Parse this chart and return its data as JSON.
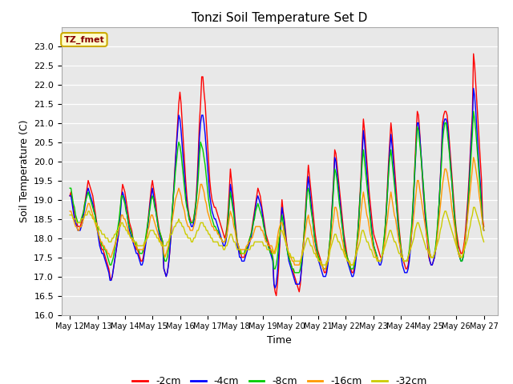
{
  "title": "Tonzi Soil Temperature Set D",
  "xlabel": "Time",
  "ylabel": "Soil Temperature (C)",
  "ylim": [
    16.0,
    23.5
  ],
  "yticks": [
    16.0,
    16.5,
    17.0,
    17.5,
    18.0,
    18.5,
    19.0,
    19.5,
    20.0,
    20.5,
    21.0,
    21.5,
    22.0,
    22.5,
    23.0
  ],
  "series_labels": [
    "-2cm",
    "-4cm",
    "-8cm",
    "-16cm",
    "-32cm"
  ],
  "series_colors": [
    "#ff0000",
    "#0000ff",
    "#00cc00",
    "#ff9900",
    "#cccc00"
  ],
  "annotation_text": "TZ_fmet",
  "annotation_bg": "#ffffcc",
  "annotation_border": "#ccaa00",
  "x_tick_labels": [
    "May 12",
    "May 13",
    "May 14",
    "May 15",
    "May 16",
    "May 17",
    "May 18",
    "May 19",
    "May 20",
    "May 21",
    "May 22",
    "May 23",
    "May 24",
    "May 25",
    "May 26",
    "May 27"
  ],
  "plot_bg": "#e8e8e8",
  "fig_bg": "#ffffff",
  "t2cm": [
    19.1,
    19.2,
    19.0,
    18.8,
    18.6,
    18.5,
    18.4,
    18.3,
    18.3,
    18.3,
    18.4,
    18.5,
    18.7,
    18.9,
    19.1,
    19.3,
    19.5,
    19.4,
    19.3,
    19.2,
    19.1,
    18.9,
    18.7,
    18.5,
    18.3,
    18.1,
    17.9,
    17.8,
    17.7,
    17.7,
    17.6,
    17.5,
    17.4,
    17.3,
    17.2,
    17.0,
    16.9,
    17.0,
    17.2,
    17.4,
    17.6,
    17.8,
    18.0,
    18.3,
    18.7,
    19.1,
    19.4,
    19.3,
    19.2,
    19.0,
    18.8,
    18.6,
    18.4,
    18.3,
    18.2,
    18.0,
    17.9,
    17.8,
    17.7,
    17.7,
    17.6,
    17.5,
    17.4,
    17.4,
    17.5,
    17.7,
    17.9,
    18.1,
    18.4,
    18.7,
    19.0,
    19.3,
    19.5,
    19.3,
    19.1,
    18.9,
    18.6,
    18.4,
    18.2,
    18.1,
    18.0,
    17.9,
    17.2,
    17.1,
    17.0,
    17.1,
    17.3,
    17.6,
    18.0,
    18.5,
    19.0,
    19.5,
    20.0,
    20.5,
    21.0,
    21.5,
    21.8,
    21.5,
    21.0,
    20.5,
    20.0,
    19.5,
    19.1,
    18.8,
    18.6,
    18.5,
    18.4,
    18.4,
    18.5,
    18.7,
    19.0,
    19.5,
    20.2,
    21.0,
    21.5,
    22.2,
    22.2,
    21.8,
    21.5,
    21.0,
    20.5,
    20.0,
    19.5,
    19.2,
    19.0,
    18.9,
    18.8,
    18.8,
    18.7,
    18.6,
    18.5,
    18.4,
    18.3,
    18.2,
    18.1,
    18.0,
    18.1,
    18.3,
    18.7,
    19.2,
    19.8,
    19.5,
    19.2,
    18.9,
    18.5,
    18.2,
    17.9,
    17.8,
    17.6,
    17.6,
    17.5,
    17.5,
    17.5,
    17.6,
    17.7,
    17.8,
    17.9,
    18.0,
    18.1,
    18.3,
    18.5,
    18.7,
    18.9,
    19.1,
    19.3,
    19.2,
    19.1,
    18.9,
    18.7,
    18.5,
    18.3,
    18.1,
    18.0,
    17.9,
    17.8,
    17.7,
    17.6,
    17.5,
    16.8,
    16.6,
    16.5,
    16.8,
    17.2,
    17.8,
    18.5,
    19.0,
    18.7,
    18.5,
    18.2,
    17.9,
    17.7,
    17.5,
    17.4,
    17.3,
    17.2,
    17.1,
    17.0,
    16.9,
    16.8,
    16.7,
    16.6,
    16.8,
    17.2,
    17.6,
    18.0,
    18.5,
    19.0,
    19.5,
    19.9,
    19.6,
    19.3,
    19.0,
    18.7,
    18.4,
    18.1,
    17.9,
    17.7,
    17.6,
    17.5,
    17.4,
    17.3,
    17.2,
    17.1,
    17.1,
    17.2,
    17.4,
    17.7,
    18.0,
    18.5,
    19.0,
    19.5,
    20.3,
    20.2,
    19.9,
    19.6,
    19.3,
    19.0,
    18.7,
    18.4,
    18.1,
    17.9,
    17.7,
    17.5,
    17.4,
    17.3,
    17.2,
    17.1,
    17.1,
    17.2,
    17.4,
    17.7,
    18.1,
    18.6,
    19.1,
    19.7,
    20.5,
    21.1,
    20.8,
    20.4,
    20.0,
    19.6,
    19.2,
    18.9,
    18.6,
    18.3,
    18.1,
    18.0,
    17.9,
    17.8,
    17.7,
    17.6,
    17.5,
    17.5,
    17.6,
    17.9,
    18.3,
    18.8,
    19.4,
    20.0,
    20.5,
    21.0,
    20.7,
    20.3,
    19.9,
    19.5,
    19.1,
    18.7,
    18.3,
    18.0,
    17.7,
    17.5,
    17.4,
    17.3,
    17.2,
    17.2,
    17.3,
    17.5,
    17.8,
    18.2,
    18.7,
    19.3,
    20.0,
    20.7,
    21.3,
    21.2,
    20.8,
    20.3,
    19.8,
    19.3,
    18.9,
    18.5,
    18.1,
    17.8,
    17.5,
    17.4,
    17.3,
    17.3,
    17.4,
    17.5,
    17.7,
    18.0,
    18.4,
    18.9,
    19.5,
    20.2,
    21.0,
    21.2,
    21.3,
    21.3,
    21.2,
    20.9,
    20.5,
    20.1,
    19.7,
    19.3,
    18.9,
    18.5,
    18.2,
    18.0,
    17.8,
    17.7,
    17.6,
    17.6,
    17.7,
    17.9,
    18.2,
    18.6,
    19.0,
    19.5,
    20.1,
    20.7,
    21.2,
    22.8,
    22.5,
    22.0,
    21.5,
    21.0,
    20.5,
    20.0,
    19.5,
    18.5,
    18.3
  ],
  "t4cm": [
    19.1,
    19.1,
    18.9,
    18.7,
    18.5,
    18.4,
    18.3,
    18.2,
    18.2,
    18.2,
    18.3,
    18.4,
    18.6,
    18.8,
    19.0,
    19.2,
    19.3,
    19.2,
    19.1,
    19.0,
    18.9,
    18.7,
    18.6,
    18.4,
    18.2,
    18.0,
    17.8,
    17.7,
    17.6,
    17.6,
    17.5,
    17.4,
    17.3,
    17.2,
    17.1,
    16.9,
    16.9,
    17.0,
    17.2,
    17.4,
    17.6,
    17.8,
    18.0,
    18.2,
    18.6,
    19.0,
    19.2,
    19.1,
    19.0,
    18.8,
    18.6,
    18.4,
    18.2,
    18.1,
    18.0,
    17.9,
    17.8,
    17.7,
    17.6,
    17.6,
    17.5,
    17.4,
    17.3,
    17.3,
    17.4,
    17.6,
    17.8,
    18.0,
    18.3,
    18.6,
    18.9,
    19.1,
    19.3,
    19.1,
    18.9,
    18.7,
    18.5,
    18.3,
    18.1,
    18.0,
    17.9,
    17.8,
    17.2,
    17.1,
    17.0,
    17.1,
    17.3,
    17.6,
    18.0,
    18.5,
    19.0,
    19.4,
    19.9,
    20.4,
    20.8,
    21.2,
    21.1,
    20.8,
    20.4,
    20.0,
    19.6,
    19.2,
    18.9,
    18.7,
    18.5,
    18.4,
    18.3,
    18.3,
    18.4,
    18.6,
    18.9,
    19.3,
    19.9,
    20.6,
    21.0,
    21.2,
    21.2,
    21.0,
    20.7,
    20.3,
    19.9,
    19.5,
    19.1,
    18.9,
    18.7,
    18.6,
    18.5,
    18.5,
    18.4,
    18.3,
    18.2,
    18.1,
    18.0,
    17.9,
    17.8,
    17.8,
    17.9,
    18.1,
    18.4,
    18.9,
    19.4,
    19.2,
    18.9,
    18.7,
    18.4,
    18.1,
    17.8,
    17.7,
    17.5,
    17.5,
    17.4,
    17.4,
    17.4,
    17.5,
    17.6,
    17.7,
    17.8,
    17.9,
    18.0,
    18.2,
    18.4,
    18.6,
    18.8,
    19.0,
    19.1,
    19.0,
    18.9,
    18.8,
    18.6,
    18.4,
    18.2,
    18.0,
    17.9,
    17.8,
    17.7,
    17.6,
    17.5,
    17.4,
    16.8,
    16.7,
    16.8,
    17.1,
    17.5,
    17.9,
    18.4,
    18.8,
    18.6,
    18.4,
    18.1,
    17.8,
    17.6,
    17.4,
    17.3,
    17.2,
    17.1,
    17.0,
    16.9,
    16.8,
    16.8,
    16.8,
    16.8,
    16.9,
    17.2,
    17.5,
    17.9,
    18.3,
    18.8,
    19.3,
    19.6,
    19.3,
    19.0,
    18.7,
    18.4,
    18.1,
    17.9,
    17.7,
    17.5,
    17.4,
    17.3,
    17.2,
    17.1,
    17.0,
    17.0,
    17.0,
    17.1,
    17.3,
    17.6,
    17.9,
    18.4,
    18.9,
    19.4,
    20.1,
    20.0,
    19.7,
    19.4,
    19.1,
    18.8,
    18.5,
    18.2,
    18.0,
    17.7,
    17.6,
    17.4,
    17.3,
    17.2,
    17.1,
    17.0,
    17.0,
    17.1,
    17.3,
    17.6,
    18.0,
    18.5,
    19.0,
    19.5,
    20.2,
    20.8,
    20.5,
    20.1,
    19.7,
    19.3,
    18.9,
    18.6,
    18.3,
    18.0,
    17.8,
    17.7,
    17.6,
    17.5,
    17.4,
    17.3,
    17.3,
    17.4,
    17.6,
    17.9,
    18.2,
    18.7,
    19.2,
    19.8,
    20.3,
    20.7,
    20.4,
    20.0,
    19.6,
    19.2,
    18.8,
    18.4,
    18.1,
    17.8,
    17.5,
    17.3,
    17.2,
    17.1,
    17.1,
    17.1,
    17.2,
    17.4,
    17.7,
    18.1,
    18.6,
    19.2,
    19.8,
    20.4,
    21.0,
    21.0,
    20.7,
    20.3,
    19.9,
    19.4,
    19.0,
    18.6,
    18.2,
    17.9,
    17.6,
    17.4,
    17.3,
    17.3,
    17.4,
    17.5,
    17.7,
    18.0,
    18.4,
    18.9,
    19.5,
    20.1,
    20.8,
    21.0,
    21.1,
    21.1,
    21.0,
    20.7,
    20.3,
    19.9,
    19.5,
    19.1,
    18.7,
    18.3,
    18.0,
    17.8,
    17.6,
    17.5,
    17.4,
    17.4,
    17.5,
    17.7,
    18.0,
    18.4,
    18.8,
    19.3,
    19.9,
    20.5,
    21.0,
    21.9,
    21.7,
    21.3,
    20.8,
    20.3,
    19.8,
    19.4,
    18.9,
    18.4,
    18.2
  ],
  "t8cm": [
    19.3,
    19.3,
    19.1,
    18.9,
    18.8,
    18.6,
    18.5,
    18.4,
    18.4,
    18.4,
    18.5,
    18.6,
    18.7,
    18.9,
    19.0,
    19.1,
    19.2,
    19.1,
    19.0,
    18.9,
    18.8,
    18.7,
    18.6,
    18.4,
    18.3,
    18.1,
    18.0,
    17.9,
    17.8,
    17.8,
    17.7,
    17.7,
    17.6,
    17.5,
    17.4,
    17.3,
    17.3,
    17.4,
    17.5,
    17.7,
    17.9,
    18.1,
    18.3,
    18.5,
    18.8,
    19.1,
    19.1,
    19.0,
    18.9,
    18.7,
    18.6,
    18.4,
    18.3,
    18.2,
    18.1,
    18.0,
    17.9,
    17.9,
    17.8,
    17.7,
    17.7,
    17.6,
    17.6,
    17.6,
    17.7,
    17.8,
    18.0,
    18.2,
    18.4,
    18.6,
    18.8,
    19.0,
    19.1,
    19.0,
    18.8,
    18.7,
    18.5,
    18.3,
    18.2,
    18.1,
    18.0,
    17.9,
    17.5,
    17.4,
    17.4,
    17.5,
    17.7,
    17.9,
    18.2,
    18.6,
    19.0,
    19.3,
    19.7,
    20.0,
    20.3,
    20.5,
    20.4,
    20.2,
    19.9,
    19.6,
    19.3,
    19.0,
    18.8,
    18.7,
    18.5,
    18.4,
    18.4,
    18.4,
    18.5,
    18.7,
    18.9,
    19.2,
    19.6,
    20.1,
    20.5,
    20.4,
    20.3,
    20.1,
    19.9,
    19.6,
    19.3,
    19.0,
    18.8,
    18.6,
    18.5,
    18.4,
    18.3,
    18.3,
    18.2,
    18.2,
    18.1,
    18.0,
    18.0,
    17.9,
    17.9,
    17.9,
    18.0,
    18.2,
    18.5,
    18.9,
    19.2,
    19.0,
    18.8,
    18.6,
    18.3,
    18.1,
    17.9,
    17.8,
    17.7,
    17.6,
    17.6,
    17.6,
    17.6,
    17.7,
    17.7,
    17.8,
    17.9,
    18.0,
    18.1,
    18.2,
    18.4,
    18.5,
    18.7,
    18.8,
    18.9,
    18.8,
    18.7,
    18.6,
    18.5,
    18.3,
    18.2,
    18.0,
    17.9,
    17.8,
    17.7,
    17.6,
    17.6,
    17.5,
    17.2,
    17.2,
    17.3,
    17.5,
    17.8,
    18.1,
    18.4,
    18.6,
    18.4,
    18.2,
    18.0,
    17.8,
    17.6,
    17.5,
    17.4,
    17.3,
    17.2,
    17.2,
    17.1,
    17.1,
    17.1,
    17.1,
    17.1,
    17.2,
    17.4,
    17.7,
    18.0,
    18.4,
    18.8,
    19.2,
    19.3,
    19.1,
    18.8,
    18.6,
    18.4,
    18.1,
    17.9,
    17.8,
    17.6,
    17.5,
    17.4,
    17.3,
    17.3,
    17.2,
    17.2,
    17.2,
    17.3,
    17.4,
    17.7,
    18.0,
    18.4,
    18.8,
    19.3,
    19.8,
    19.7,
    19.5,
    19.2,
    18.9,
    18.7,
    18.4,
    18.2,
    17.9,
    17.7,
    17.6,
    17.5,
    17.4,
    17.3,
    17.2,
    17.2,
    17.2,
    17.3,
    17.5,
    17.8,
    18.1,
    18.5,
    19.0,
    19.5,
    20.0,
    20.3,
    20.0,
    19.7,
    19.4,
    19.1,
    18.8,
    18.5,
    18.2,
    18.0,
    17.8,
    17.7,
    17.6,
    17.5,
    17.4,
    17.4,
    17.4,
    17.5,
    17.7,
    18.0,
    18.3,
    18.7,
    19.2,
    19.7,
    20.1,
    20.3,
    20.0,
    19.7,
    19.4,
    19.1,
    18.8,
    18.5,
    18.2,
    17.9,
    17.7,
    17.5,
    17.4,
    17.4,
    17.4,
    17.4,
    17.5,
    17.7,
    18.0,
    18.3,
    18.8,
    19.3,
    19.9,
    20.4,
    20.9,
    20.8,
    20.5,
    20.2,
    19.8,
    19.5,
    19.1,
    18.7,
    18.4,
    18.1,
    17.8,
    17.6,
    17.5,
    17.5,
    17.5,
    17.6,
    17.8,
    18.1,
    18.5,
    18.9,
    19.4,
    19.9,
    20.5,
    20.8,
    21.0,
    21.0,
    20.8,
    20.5,
    20.2,
    19.8,
    19.5,
    19.1,
    18.7,
    18.4,
    18.1,
    17.8,
    17.6,
    17.5,
    17.4,
    17.4,
    17.5,
    17.7,
    18.0,
    18.3,
    18.7,
    19.2,
    19.7,
    20.2,
    20.7,
    21.3,
    21.1,
    20.8,
    20.4,
    20.0,
    19.6,
    19.2,
    18.8,
    18.4,
    18.2
  ],
  "t16cm": [
    18.7,
    18.7,
    18.6,
    18.5,
    18.4,
    18.3,
    18.3,
    18.2,
    18.2,
    18.3,
    18.3,
    18.4,
    18.5,
    18.6,
    18.7,
    18.8,
    18.9,
    18.9,
    18.8,
    18.7,
    18.6,
    18.5,
    18.4,
    18.3,
    18.2,
    18.1,
    18.0,
    17.9,
    17.9,
    17.8,
    17.8,
    17.7,
    17.7,
    17.6,
    17.6,
    17.5,
    17.5,
    17.6,
    17.7,
    17.8,
    17.9,
    18.0,
    18.1,
    18.3,
    18.4,
    18.6,
    18.6,
    18.5,
    18.5,
    18.4,
    18.3,
    18.2,
    18.1,
    18.0,
    18.0,
    17.9,
    17.9,
    17.8,
    17.8,
    17.7,
    17.7,
    17.7,
    17.7,
    17.7,
    17.7,
    17.8,
    17.9,
    18.0,
    18.2,
    18.3,
    18.5,
    18.6,
    18.6,
    18.5,
    18.4,
    18.3,
    18.2,
    18.1,
    18.0,
    17.9,
    17.9,
    17.8,
    17.6,
    17.5,
    17.6,
    17.7,
    17.8,
    18.0,
    18.2,
    18.4,
    18.6,
    18.8,
    19.0,
    19.1,
    19.2,
    19.3,
    19.2,
    19.1,
    18.9,
    18.8,
    18.7,
    18.5,
    18.4,
    18.3,
    18.3,
    18.2,
    18.2,
    18.2,
    18.3,
    18.4,
    18.6,
    18.8,
    19.0,
    19.2,
    19.4,
    19.4,
    19.3,
    19.2,
    19.0,
    18.9,
    18.7,
    18.6,
    18.5,
    18.4,
    18.3,
    18.3,
    18.2,
    18.2,
    18.2,
    18.1,
    18.1,
    18.0,
    18.0,
    17.9,
    17.9,
    17.9,
    18.0,
    18.1,
    18.3,
    18.5,
    18.7,
    18.6,
    18.5,
    18.3,
    18.2,
    18.0,
    17.9,
    17.8,
    17.7,
    17.7,
    17.7,
    17.7,
    17.7,
    17.7,
    17.8,
    17.8,
    17.9,
    17.9,
    18.0,
    18.0,
    18.1,
    18.2,
    18.3,
    18.3,
    18.3,
    18.3,
    18.3,
    18.2,
    18.2,
    18.1,
    18.0,
    17.9,
    17.9,
    17.8,
    17.8,
    17.8,
    17.8,
    17.7,
    17.6,
    17.7,
    17.8,
    18.0,
    18.2,
    18.3,
    18.4,
    18.4,
    18.3,
    18.1,
    18.0,
    17.8,
    17.7,
    17.6,
    17.5,
    17.5,
    17.4,
    17.4,
    17.3,
    17.3,
    17.3,
    17.3,
    17.3,
    17.4,
    17.5,
    17.7,
    17.9,
    18.1,
    18.3,
    18.5,
    18.6,
    18.4,
    18.3,
    18.1,
    18.0,
    17.8,
    17.7,
    17.6,
    17.5,
    17.4,
    17.4,
    17.3,
    17.3,
    17.2,
    17.2,
    17.2,
    17.3,
    17.4,
    17.6,
    17.8,
    18.0,
    18.3,
    18.5,
    18.8,
    18.8,
    18.7,
    18.5,
    18.3,
    18.2,
    18.0,
    17.9,
    17.7,
    17.6,
    17.5,
    17.4,
    17.4,
    17.3,
    17.3,
    17.3,
    17.3,
    17.4,
    17.5,
    17.7,
    17.9,
    18.1,
    18.4,
    18.7,
    19.0,
    19.2,
    19.0,
    18.8,
    18.6,
    18.5,
    18.3,
    18.1,
    18.0,
    17.8,
    17.7,
    17.6,
    17.5,
    17.5,
    17.4,
    17.4,
    17.4,
    17.5,
    17.6,
    17.8,
    18.0,
    18.3,
    18.5,
    18.8,
    19.0,
    19.2,
    19.0,
    18.8,
    18.6,
    18.5,
    18.3,
    18.1,
    17.9,
    17.8,
    17.6,
    17.5,
    17.4,
    17.4,
    17.4,
    17.4,
    17.5,
    17.6,
    17.8,
    18.1,
    18.3,
    18.6,
    18.9,
    19.2,
    19.5,
    19.5,
    19.3,
    19.1,
    18.9,
    18.7,
    18.5,
    18.3,
    18.1,
    17.9,
    17.7,
    17.6,
    17.5,
    17.5,
    17.5,
    17.6,
    17.7,
    17.9,
    18.2,
    18.5,
    18.8,
    19.1,
    19.4,
    19.6,
    19.8,
    19.8,
    19.7,
    19.5,
    19.3,
    19.1,
    18.8,
    18.6,
    18.4,
    18.2,
    17.9,
    17.7,
    17.6,
    17.5,
    17.5,
    17.5,
    17.6,
    17.8,
    18.0,
    18.3,
    18.6,
    18.9,
    19.2,
    19.5,
    19.8,
    20.1,
    20.0,
    19.8,
    19.6,
    19.4,
    19.1,
    18.9,
    18.6,
    18.4,
    18.2
  ],
  "t32cm": [
    18.6,
    18.6,
    18.6,
    18.5,
    18.5,
    18.5,
    18.4,
    18.4,
    18.4,
    18.4,
    18.5,
    18.5,
    18.5,
    18.6,
    18.6,
    18.6,
    18.7,
    18.7,
    18.6,
    18.6,
    18.5,
    18.5,
    18.4,
    18.4,
    18.3,
    18.3,
    18.2,
    18.2,
    18.1,
    18.1,
    18.1,
    18.0,
    18.0,
    18.0,
    17.9,
    17.9,
    17.9,
    18.0,
    18.0,
    18.1,
    18.1,
    18.2,
    18.2,
    18.3,
    18.3,
    18.4,
    18.4,
    18.3,
    18.3,
    18.2,
    18.2,
    18.1,
    18.1,
    18.0,
    18.0,
    18.0,
    17.9,
    17.9,
    17.9,
    17.8,
    17.8,
    17.8,
    17.8,
    17.8,
    17.8,
    17.9,
    17.9,
    18.0,
    18.0,
    18.1,
    18.2,
    18.2,
    18.2,
    18.2,
    18.1,
    18.1,
    18.0,
    18.0,
    17.9,
    17.9,
    17.8,
    17.8,
    17.8,
    17.8,
    17.8,
    17.9,
    17.9,
    18.0,
    18.1,
    18.1,
    18.2,
    18.3,
    18.3,
    18.4,
    18.4,
    18.5,
    18.4,
    18.4,
    18.3,
    18.3,
    18.2,
    18.1,
    18.1,
    18.0,
    18.0,
    18.0,
    17.9,
    17.9,
    18.0,
    18.0,
    18.1,
    18.2,
    18.2,
    18.3,
    18.4,
    18.4,
    18.4,
    18.3,
    18.3,
    18.2,
    18.2,
    18.1,
    18.1,
    18.0,
    18.0,
    17.9,
    17.9,
    17.9,
    17.9,
    17.9,
    17.8,
    17.8,
    17.8,
    17.8,
    17.7,
    17.7,
    17.8,
    17.8,
    17.9,
    18.0,
    18.1,
    18.1,
    18.0,
    17.9,
    17.9,
    17.8,
    17.7,
    17.7,
    17.7,
    17.7,
    17.6,
    17.6,
    17.6,
    17.6,
    17.7,
    17.7,
    17.7,
    17.7,
    17.8,
    17.8,
    17.8,
    17.9,
    17.9,
    17.9,
    17.9,
    17.9,
    17.9,
    17.9,
    17.9,
    17.8,
    17.8,
    17.8,
    17.7,
    17.7,
    17.7,
    17.7,
    17.7,
    17.6,
    17.6,
    17.6,
    17.7,
    17.8,
    18.0,
    18.1,
    18.2,
    18.2,
    18.1,
    18.0,
    17.9,
    17.8,
    17.7,
    17.6,
    17.6,
    17.5,
    17.5,
    17.5,
    17.4,
    17.4,
    17.4,
    17.4,
    17.4,
    17.4,
    17.5,
    17.6,
    17.7,
    17.8,
    17.9,
    18.0,
    18.0,
    17.9,
    17.8,
    17.8,
    17.7,
    17.6,
    17.6,
    17.5,
    17.5,
    17.4,
    17.4,
    17.4,
    17.3,
    17.3,
    17.3,
    17.3,
    17.4,
    17.4,
    17.5,
    17.7,
    17.8,
    17.9,
    18.0,
    18.1,
    18.1,
    18.0,
    17.9,
    17.9,
    17.8,
    17.7,
    17.7,
    17.6,
    17.5,
    17.5,
    17.4,
    17.4,
    17.4,
    17.3,
    17.3,
    17.3,
    17.4,
    17.5,
    17.6,
    17.7,
    17.8,
    17.9,
    18.1,
    18.2,
    18.2,
    18.1,
    18.0,
    17.9,
    17.9,
    17.8,
    17.7,
    17.7,
    17.6,
    17.5,
    17.5,
    17.5,
    17.4,
    17.4,
    17.4,
    17.4,
    17.5,
    17.6,
    17.7,
    17.8,
    17.9,
    18.0,
    18.1,
    18.2,
    18.2,
    18.1,
    18.0,
    17.9,
    17.9,
    17.8,
    17.7,
    17.6,
    17.6,
    17.5,
    17.5,
    17.4,
    17.4,
    17.4,
    17.4,
    17.5,
    17.6,
    17.7,
    17.8,
    17.9,
    18.0,
    18.2,
    18.3,
    18.4,
    18.4,
    18.3,
    18.2,
    18.1,
    18.0,
    17.9,
    17.8,
    17.7,
    17.7,
    17.6,
    17.5,
    17.5,
    17.5,
    17.5,
    17.6,
    17.7,
    17.8,
    17.9,
    18.0,
    18.2,
    18.3,
    18.5,
    18.6,
    18.7,
    18.7,
    18.6,
    18.5,
    18.4,
    18.3,
    18.2,
    18.1,
    18.0,
    17.9,
    17.8,
    17.7,
    17.6,
    17.6,
    17.5,
    17.5,
    17.6,
    17.7,
    17.8,
    17.9,
    18.0,
    18.2,
    18.3,
    18.5,
    18.6,
    18.8,
    18.8,
    18.7,
    18.6,
    18.5,
    18.4,
    18.3,
    18.1,
    18.0,
    17.9
  ]
}
